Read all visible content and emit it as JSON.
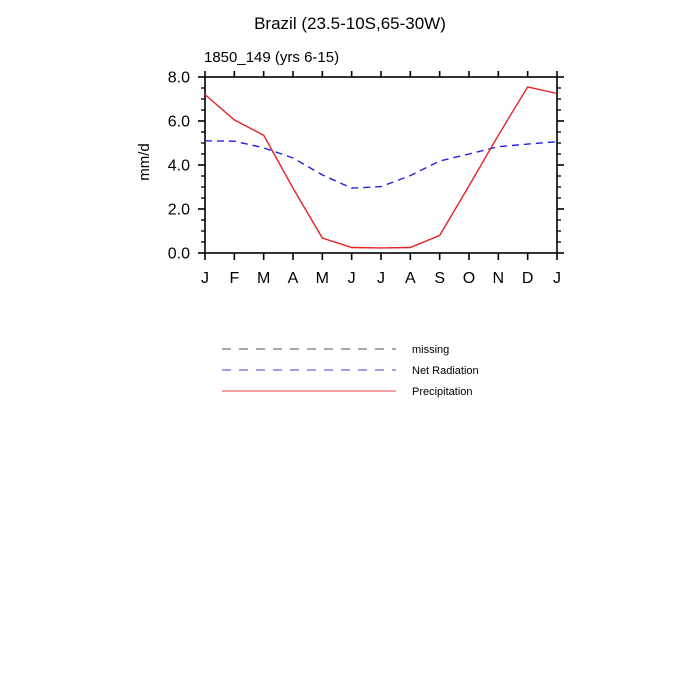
{
  "window": {
    "background": "#ffffff"
  },
  "chart_data": {
    "type": "line",
    "title": "Brazil (23.5-10S,65-30W)",
    "subtitle": "1850_149 (yrs 6-15)",
    "xlabel": "",
    "ylabel": "mm/d",
    "x_tick_labels": [
      "J",
      "F",
      "M",
      "A",
      "M",
      "J",
      "J",
      "A",
      "S",
      "O",
      "N",
      "D",
      "J"
    ],
    "y_tick_labels": [
      "0.0",
      "2.0",
      "4.0",
      "6.0",
      "8.0"
    ],
    "ylim": [
      0,
      8
    ],
    "y_major_step": 2.0,
    "y_minor_step": 0.5,
    "grid": "off",
    "legend_position": "below-left",
    "axis_color": "#000000",
    "series": [
      {
        "name": "missing",
        "style": "dashed",
        "line_color": "#a8a8a8",
        "legend_color": "#a8a8a8",
        "values": null
      },
      {
        "name": "Net Radiation",
        "style": "dashed",
        "line_color": "#2222dd",
        "legend_color": "#9f9fee",
        "values": [
          5.1,
          5.08,
          4.78,
          4.32,
          3.55,
          2.95,
          3.02,
          3.52,
          4.18,
          4.5,
          4.83,
          4.95,
          5.06
        ]
      },
      {
        "name": "Precipitation",
        "style": "solid",
        "line_color": "#e62222",
        "legend_color": "#f2a0a0",
        "values": [
          7.2,
          6.05,
          5.35,
          2.95,
          0.68,
          0.25,
          0.23,
          0.25,
          0.8,
          3.05,
          5.35,
          7.55,
          7.25
        ]
      }
    ]
  }
}
